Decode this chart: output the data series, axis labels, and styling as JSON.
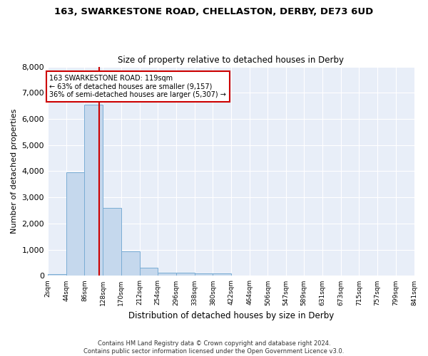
{
  "title": "163, SWARKESTONE ROAD, CHELLASTON, DERBY, DE73 6UD",
  "subtitle": "Size of property relative to detached houses in Derby",
  "xlabel": "Distribution of detached houses by size in Derby",
  "ylabel": "Number of detached properties",
  "bin_edges": [
    2,
    44,
    86,
    128,
    170,
    212,
    254,
    296,
    338,
    380,
    422,
    464,
    506,
    547,
    589,
    631,
    673,
    715,
    757,
    799,
    841
  ],
  "bar_heights": [
    75,
    3950,
    6550,
    2600,
    950,
    310,
    120,
    120,
    95,
    80,
    0,
    0,
    0,
    0,
    0,
    0,
    0,
    0,
    0,
    0
  ],
  "bar_color": "#c5d8ed",
  "bar_edge_color": "#7aadd4",
  "vline_x": 119,
  "vline_color": "#cc0000",
  "annotation_text": "163 SWARKESTONE ROAD: 119sqm\n← 63% of detached houses are smaller (9,157)\n36% of semi-detached houses are larger (5,307) →",
  "annotation_box_facecolor": "#ffffff",
  "annotation_box_edgecolor": "#cc0000",
  "ylim": [
    0,
    8000
  ],
  "yticks": [
    0,
    1000,
    2000,
    3000,
    4000,
    5000,
    6000,
    7000,
    8000
  ],
  "tick_labels": [
    "2sqm",
    "44sqm",
    "86sqm",
    "128sqm",
    "170sqm",
    "212sqm",
    "254sqm",
    "296sqm",
    "338sqm",
    "380sqm",
    "422sqm",
    "464sqm",
    "506sqm",
    "547sqm",
    "589sqm",
    "631sqm",
    "673sqm",
    "715sqm",
    "757sqm",
    "799sqm",
    "841sqm"
  ],
  "footer_text": "Contains HM Land Registry data © Crown copyright and database right 2024.\nContains public sector information licensed under the Open Government Licence v3.0.",
  "bg_color": "#ffffff",
  "plot_bg_color": "#e8eef8",
  "grid_color": "#ffffff",
  "figsize": [
    6.0,
    5.0
  ],
  "dpi": 100
}
